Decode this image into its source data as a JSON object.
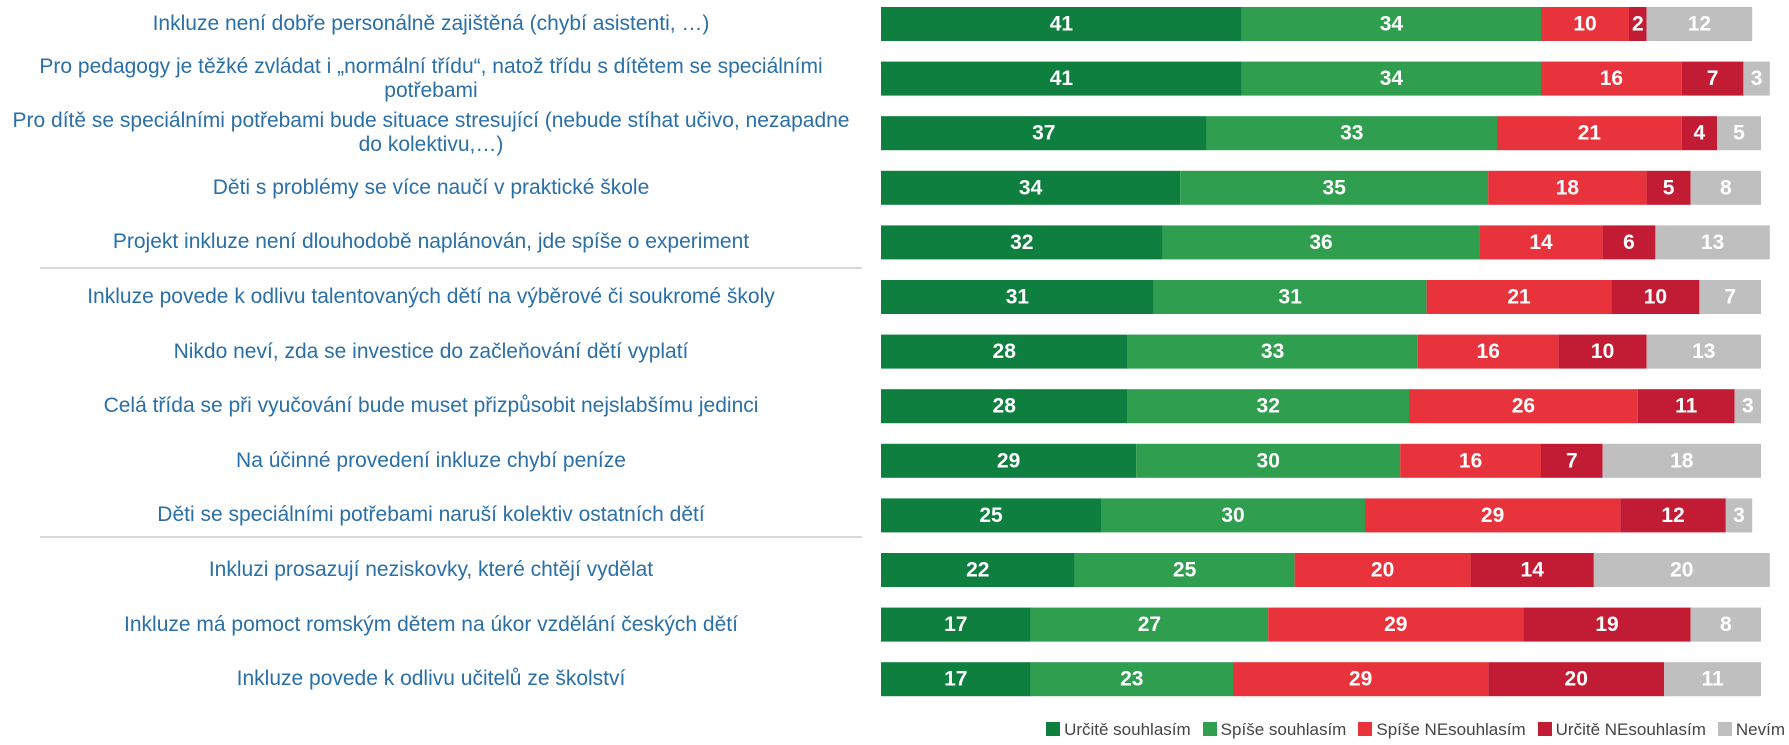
{
  "chart_data": {
    "type": "stacked_barh",
    "categories": [
      "Inkluze není dobře personálně zajištěná (chybí asistenti, …)",
      "Pro pedagogy je těžké zvládat i „normální třídu“, natož třídu s dítětem se speciálními potřebami",
      "Pro dítě se speciálními potřebami bude situace stresující (nebude stíhat učivo, nezapadne do kolektivu,…)",
      "Děti s problémy se více naučí v praktické škole",
      "Projekt inkluze není dlouhodobě naplánován, jde spíše o experiment",
      "Inkluze povede k odlivu talentovaných dětí na výběrové či soukromé školy",
      "Nikdo neví, zda se investice do začleňování dětí vyplatí",
      "Celá třída se při vyučování bude muset přizpůsobit nejslabšímu jedinci",
      "Na účinné provedení inkluze chybí peníze",
      "Děti se speciálními potřebami naruší kolektiv ostatních dětí",
      "Inkluzi prosazují neziskovky, které chtějí vydělat",
      "Inkluze má pomoct romským dětem na úkor vzdělání českých dětí",
      "Inkluze povede k odlivu učitelů ze školství"
    ],
    "series": [
      {
        "name": "Určitě souhlasím",
        "color": "#0e7f3e",
        "values": [
          41,
          41,
          37,
          34,
          32,
          31,
          28,
          28,
          29,
          25,
          22,
          17,
          17
        ]
      },
      {
        "name": "Spíše souhlasím",
        "color": "#2f9e4f",
        "values": [
          34,
          34,
          33,
          35,
          36,
          31,
          33,
          32,
          30,
          30,
          25,
          27,
          23
        ]
      },
      {
        "name": "Spíše NEsouhlasím",
        "color": "#e8323c",
        "values": [
          10,
          16,
          21,
          18,
          14,
          21,
          16,
          26,
          16,
          29,
          20,
          29,
          29
        ]
      },
      {
        "name": "Určitě NEsouhlasím",
        "color": "#c21c34",
        "values": [
          2,
          7,
          4,
          5,
          6,
          10,
          10,
          11,
          7,
          12,
          14,
          19,
          20
        ]
      },
      {
        "name": "Nevím",
        "color": "#bfbfbf",
        "values": [
          12,
          3,
          5,
          8,
          13,
          7,
          13,
          3,
          18,
          3,
          20,
          8,
          11
        ]
      }
    ],
    "xlim": [
      0,
      100
    ]
  }
}
